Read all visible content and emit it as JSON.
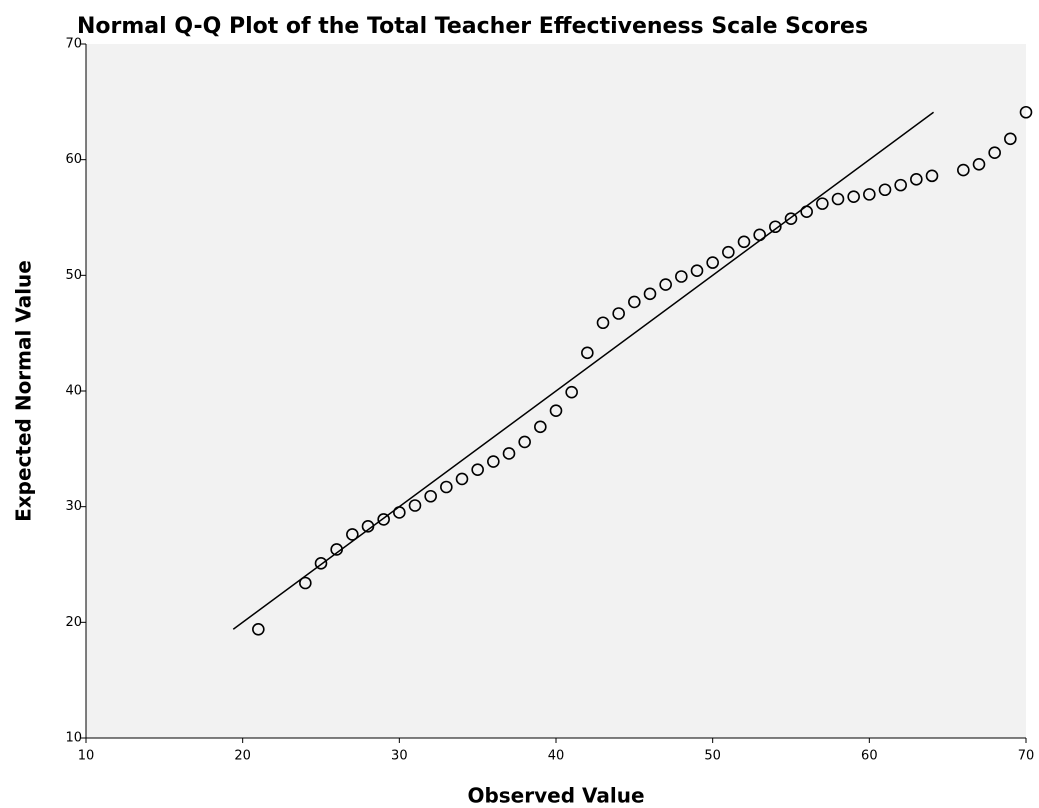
{
  "chart_data": {
    "type": "scatter",
    "title": "Normal Q-Q Plot of the Total Teacher Effectiveness Scale Scores",
    "x_label": "Observed Value",
    "y_label": "Expected Normal Value",
    "x": [
      21,
      24,
      25,
      26,
      27,
      28,
      29,
      30,
      31,
      32,
      33,
      34,
      35,
      36,
      37,
      38,
      39,
      40,
      41,
      42,
      43,
      44,
      45,
      46,
      47,
      48,
      49,
      50,
      51,
      52,
      53,
      54,
      55,
      56,
      57,
      58,
      59,
      60,
      61,
      62,
      63,
      64,
      66,
      67,
      68,
      69,
      70
    ],
    "values": [
      19.4,
      23.4,
      25.1,
      26.3,
      27.6,
      28.3,
      28.9,
      29.5,
      30.1,
      30.9,
      31.7,
      32.4,
      33.2,
      33.9,
      34.6,
      35.6,
      36.9,
      38.3,
      39.9,
      43.3,
      45.9,
      46.7,
      47.7,
      48.4,
      49.2,
      49.9,
      50.4,
      51.1,
      52.0,
      52.9,
      53.5,
      54.2,
      54.9,
      55.5,
      56.2,
      56.6,
      56.8,
      57.0,
      57.4,
      57.8,
      58.3,
      58.6,
      59.1,
      59.6,
      60.6,
      61.8,
      64.1
    ],
    "color": "#000000",
    "reference_line": {
      "x": [
        19.4,
        64.1
      ],
      "y": [
        19.4,
        64.1
      ]
    },
    "xlim": [
      10,
      70
    ],
    "xticks": [
      10,
      20,
      30,
      40,
      50,
      60,
      70
    ],
    "ylim": [
      10,
      70
    ],
    "yticks": [
      10,
      20,
      30,
      40,
      50,
      60,
      70
    ],
    "grid": false
  }
}
